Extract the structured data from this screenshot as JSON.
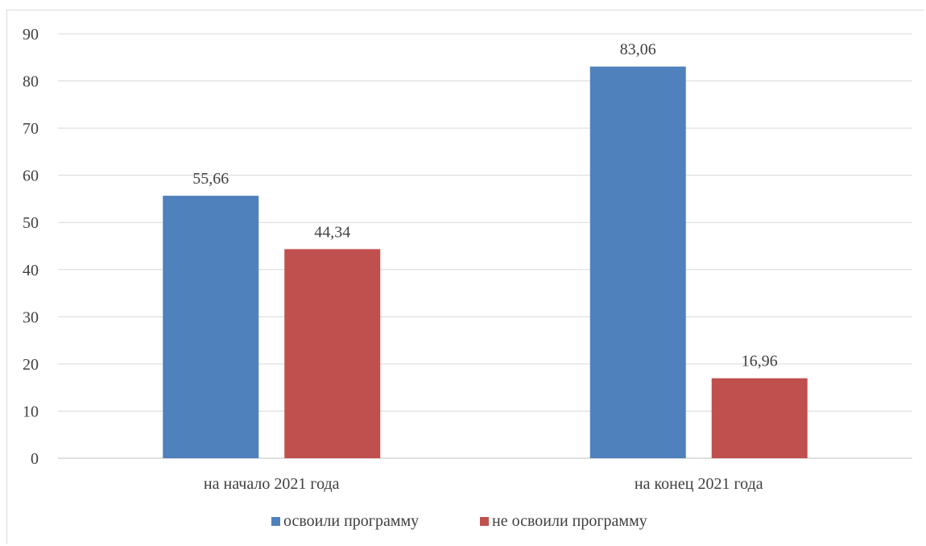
{
  "chart_data": {
    "type": "bar",
    "categories": [
      "на начало 2021 года",
      "на конец 2021 года"
    ],
    "series": [
      {
        "name": "освоили программу",
        "values": [
          55.66,
          83.06
        ],
        "color": "#4f81bd"
      },
      {
        "name": "не освоили программу",
        "values": [
          44.34,
          16.96
        ],
        "color": "#c0504d"
      }
    ],
    "data_labels": [
      [
        "55,66",
        "83,06"
      ],
      [
        "44,34",
        "16,96"
      ]
    ],
    "title": "",
    "xlabel": "",
    "ylabel": "",
    "ylim": [
      0,
      90
    ],
    "yticks": [
      0,
      10,
      20,
      30,
      40,
      50,
      60,
      70,
      80,
      90
    ],
    "grid": true,
    "legend": "bottom"
  }
}
